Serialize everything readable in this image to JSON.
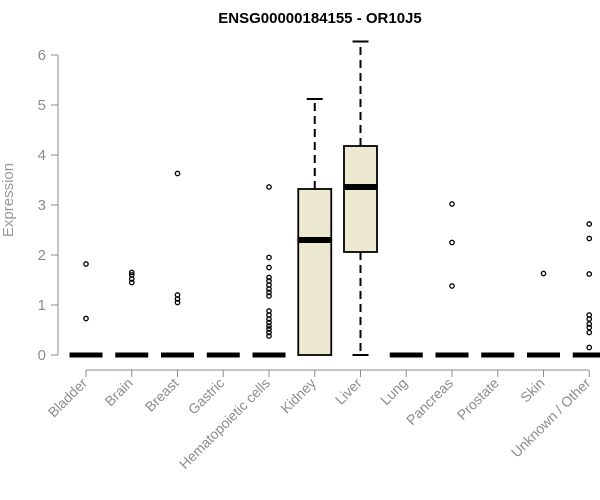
{
  "chart_data": {
    "type": "box",
    "title": "ENSG00000184155 - OR10J5",
    "xlabel": "",
    "ylabel": "Expression",
    "ylim": [
      0,
      6.3
    ],
    "yticks": [
      "0",
      "1",
      "2",
      "3",
      "4",
      "5",
      "6"
    ],
    "grid": false,
    "legend": "none",
    "colors": {
      "box_fill": "#ede8d0",
      "stroke": "#000000",
      "axis": "#8c8c8c"
    },
    "categories": [
      "Bladder",
      "Brain",
      "Breast",
      "Gastric",
      "Hematopoietic cells",
      "Kidney",
      "Liver",
      "Lung",
      "Pancreas",
      "Prostate",
      "Skin",
      "Unknown / Other"
    ],
    "boxes": [
      {
        "q1": 0,
        "median": 0,
        "q3": 0,
        "whisker_low": 0,
        "whisker_high": 0,
        "outliers": [
          0.73,
          1.82
        ]
      },
      {
        "q1": 0,
        "median": 0,
        "q3": 0,
        "whisker_low": 0,
        "whisker_high": 0,
        "outliers": [
          1.45,
          1.52,
          1.6,
          1.65
        ]
      },
      {
        "q1": 0,
        "median": 0,
        "q3": 0,
        "whisker_low": 0,
        "whisker_high": 0,
        "outliers": [
          1.05,
          1.12,
          1.2,
          3.63
        ]
      },
      {
        "q1": 0,
        "median": 0,
        "q3": 0,
        "whisker_low": 0,
        "whisker_high": 0,
        "outliers": []
      },
      {
        "q1": 0,
        "median": 0,
        "q3": 0,
        "whisker_low": 0,
        "whisker_high": 0,
        "outliers": [
          0.38,
          0.45,
          0.52,
          0.58,
          0.65,
          0.72,
          0.8,
          0.88,
          1.18,
          1.25,
          1.32,
          1.4,
          1.48,
          1.55,
          1.75,
          1.95,
          3.36
        ]
      },
      {
        "q1": 0,
        "median": 2.3,
        "q3": 3.32,
        "whisker_low": 0,
        "whisker_high": 5.12,
        "outliers": []
      },
      {
        "q1": 2.06,
        "median": 3.36,
        "q3": 4.18,
        "whisker_low": 0,
        "whisker_high": 6.27,
        "outliers": []
      },
      {
        "q1": 0,
        "median": 0,
        "q3": 0,
        "whisker_low": 0,
        "whisker_high": 0,
        "outliers": []
      },
      {
        "q1": 0,
        "median": 0,
        "q3": 0,
        "whisker_low": 0,
        "whisker_high": 0,
        "outliers": [
          1.38,
          2.25,
          3.02
        ]
      },
      {
        "q1": 0,
        "median": 0,
        "q3": 0,
        "whisker_low": 0,
        "whisker_high": 0,
        "outliers": []
      },
      {
        "q1": 0,
        "median": 0,
        "q3": 0,
        "whisker_low": 0,
        "whisker_high": 0,
        "outliers": [
          1.63
        ]
      },
      {
        "q1": 0,
        "median": 0,
        "q3": 0,
        "whisker_low": 0,
        "whisker_high": 0,
        "outliers": [
          0.15,
          0.45,
          0.55,
          0.62,
          0.72,
          0.8,
          1.62,
          2.33,
          2.62
        ]
      }
    ]
  }
}
